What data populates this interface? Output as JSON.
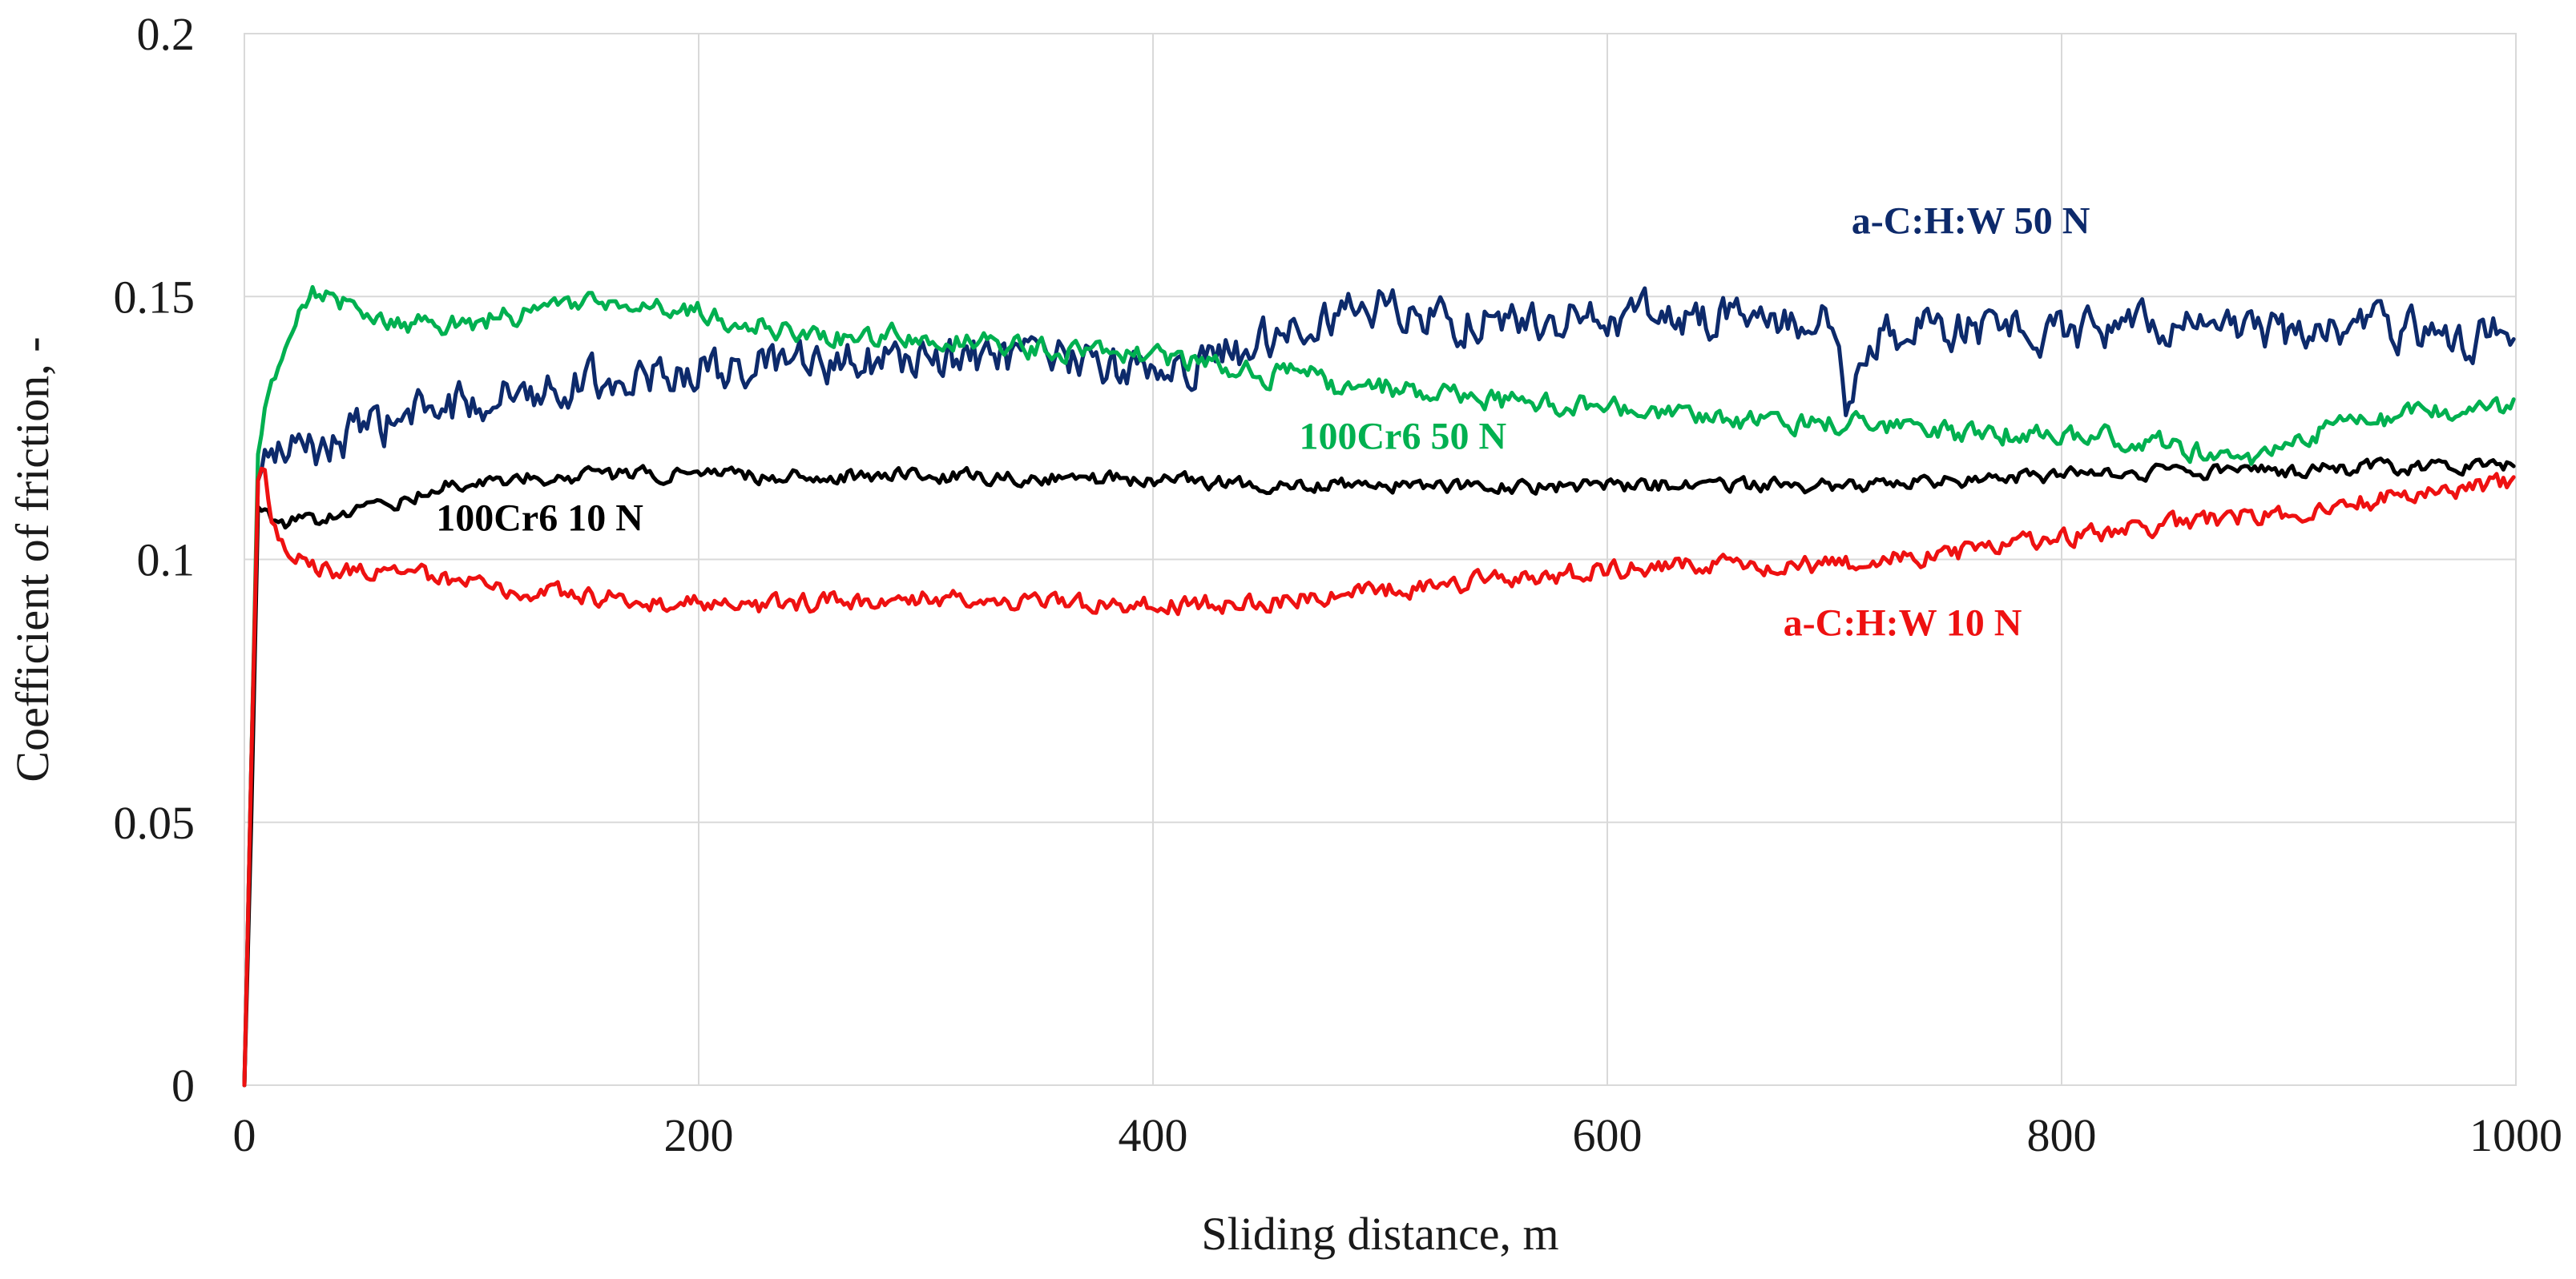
{
  "chart_data": {
    "type": "line",
    "xlabel": "Sliding distance, m",
    "ylabel": "Coefficient of friction, -",
    "xlim": [
      0,
      1000
    ],
    "ylim": [
      0,
      0.2
    ],
    "xticks": [
      0,
      200,
      400,
      600,
      800,
      1000
    ],
    "yticks": [
      0,
      0.05,
      0.1,
      0.15,
      0.2
    ],
    "xtick_labels": [
      "0",
      "200",
      "400",
      "600",
      "800",
      "1000"
    ],
    "ytick_labels": [
      "0",
      "0.05",
      "0.1",
      "0.15",
      "0.2"
    ],
    "grid": true,
    "series": [
      {
        "name": "a-C:H:W 50 N",
        "label": "a-C:H:W 50 N",
        "color": "#0d2a6b",
        "noise": 0.0065,
        "x": [
          0,
          3,
          6,
          10,
          30,
          50,
          80,
          100,
          130,
          150,
          180,
          200,
          250,
          300,
          350,
          400,
          420,
          440,
          460,
          480,
          500,
          520,
          550,
          600,
          620,
          650,
          700,
          705,
          720,
          750,
          800,
          850,
          900,
          950,
          1000
        ],
        "y": [
          0,
          0.06,
          0.115,
          0.12,
          0.121,
          0.124,
          0.128,
          0.13,
          0.133,
          0.134,
          0.135,
          0.136,
          0.137,
          0.138,
          0.138,
          0.136,
          0.137,
          0.14,
          0.145,
          0.147,
          0.148,
          0.146,
          0.145,
          0.146,
          0.147,
          0.146,
          0.145,
          0.13,
          0.142,
          0.144,
          0.143,
          0.145,
          0.143,
          0.144,
          0.142
        ]
      },
      {
        "name": "100Cr6 50 N",
        "label": "100Cr6 50 N",
        "color": "#00b050",
        "noise": 0.0032,
        "x": [
          0,
          3,
          6,
          10,
          20,
          30,
          40,
          60,
          100,
          140,
          160,
          200,
          250,
          300,
          350,
          400,
          450,
          470,
          480,
          500,
          550,
          600,
          650,
          700,
          750,
          800,
          850,
          880,
          900,
          950,
          1000
        ],
        "y": [
          0,
          0.06,
          0.12,
          0.13,
          0.142,
          0.152,
          0.15,
          0.145,
          0.145,
          0.148,
          0.149,
          0.147,
          0.142,
          0.143,
          0.14,
          0.139,
          0.135,
          0.136,
          0.132,
          0.133,
          0.13,
          0.129,
          0.126,
          0.126,
          0.124,
          0.124,
          0.122,
          0.118,
          0.123,
          0.127,
          0.129
        ]
      },
      {
        "name": "100Cr6 10 N",
        "label": "100Cr6 10 N",
        "color": "#000000",
        "noise": 0.0022,
        "x": [
          0,
          3,
          6,
          10,
          20,
          40,
          60,
          80,
          100,
          150,
          200,
          300,
          400,
          500,
          600,
          700,
          800,
          900,
          1000
        ],
        "y": [
          0,
          0.05,
          0.11,
          0.108,
          0.107,
          0.108,
          0.11,
          0.113,
          0.115,
          0.116,
          0.116,
          0.116,
          0.115,
          0.114,
          0.114,
          0.114,
          0.116,
          0.117,
          0.118
        ]
      },
      {
        "name": "a-C:H:W 10 N",
        "label": "a-C:H:W 10 N",
        "color": "#ee1111",
        "noise": 0.0028,
        "x": [
          0,
          3,
          6,
          8,
          12,
          20,
          40,
          80,
          120,
          180,
          220,
          300,
          400,
          450,
          500,
          550,
          600,
          650,
          700,
          750,
          800,
          850,
          900,
          950,
          1000
        ],
        "y": [
          0,
          0.06,
          0.115,
          0.118,
          0.108,
          0.1,
          0.098,
          0.097,
          0.094,
          0.092,
          0.091,
          0.093,
          0.091,
          0.092,
          0.094,
          0.096,
          0.098,
          0.099,
          0.099,
          0.101,
          0.104,
          0.107,
          0.109,
          0.112,
          0.115
        ]
      }
    ],
    "annotations": [
      {
        "text": "a-C:H:W 50 N",
        "series": "a-C:H:W 50 N",
        "x": 760,
        "y": 0.162,
        "anchor": "middle"
      },
      {
        "text": "100Cr6 50 N",
        "series": "100Cr6 50 N",
        "x": 510,
        "y": 0.121,
        "anchor": "middle"
      },
      {
        "text": "100Cr6 10 N",
        "series": "100Cr6 10 N",
        "x": 130,
        "y": 0.1055,
        "anchor": "middle"
      },
      {
        "text": "a-C:H:W 10 N",
        "series": "a-C:H:W 10 N",
        "x": 730,
        "y": 0.0855,
        "anchor": "middle"
      }
    ]
  }
}
